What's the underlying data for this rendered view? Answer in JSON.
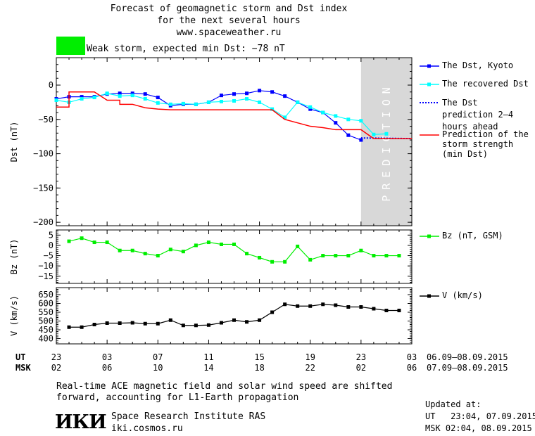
{
  "header": {
    "title_line1": "Forecast of geomagnetic storm and Dst index",
    "title_line2": "for the next several hours",
    "url": "www.spaceweather.ru",
    "status_text": "Weak storm, expected min Dst: −78 nT",
    "status_color": "#00ee00"
  },
  "prediction_label": "PREDICTION",
  "colors": {
    "dst_kyoto": "#0000ff",
    "dst_recovered": "#00ffff",
    "dst_prediction": "#0000ff",
    "storm_strength": "#ff0000",
    "bz": "#00ee00",
    "v": "#000000",
    "prediction_band": "#d8d8d8"
  },
  "chart_data": [
    {
      "type": "line",
      "ylabel": "Dst (nT)",
      "ylim": [
        -205,
        40
      ],
      "yticks": [
        0,
        -50,
        -100,
        -150,
        -200
      ],
      "ytick_labels": [
        "0",
        "−50",
        "−100",
        "−150",
        "−200"
      ],
      "xlim": [
        0,
        28
      ],
      "prediction_start": 24,
      "series": [
        {
          "name": "The Dst, Kyoto",
          "color_key": "dst_kyoto",
          "marker": "square",
          "x": [
            0,
            1,
            2,
            3,
            4,
            5,
            6,
            7,
            8,
            9,
            10,
            11,
            12,
            13,
            14,
            15,
            16,
            17,
            18,
            19,
            20,
            21,
            22,
            23,
            24
          ],
          "values": [
            -20,
            -17,
            -17,
            -17,
            -13,
            -12,
            -12,
            -13,
            -18,
            -30,
            -28,
            -28,
            -25,
            -15,
            -13,
            -12,
            -8,
            -10,
            -16,
            -25,
            -35,
            -40,
            -55,
            -73,
            -80
          ]
        },
        {
          "name": "The recovered Dst",
          "color_key": "dst_recovered",
          "marker": "square",
          "x": [
            0,
            1,
            2,
            3,
            4,
            5,
            6,
            7,
            8,
            9,
            10,
            11,
            12,
            13,
            14,
            15,
            16,
            17,
            18,
            19,
            20,
            21,
            22,
            23,
            24,
            25,
            26
          ],
          "values": [
            -22,
            -25,
            -20,
            -18,
            -12,
            -16,
            -15,
            -20,
            -26,
            -28,
            -27,
            -28,
            -25,
            -24,
            -23,
            -20,
            -25,
            -35,
            -47,
            -25,
            -32,
            -40,
            -45,
            -50,
            -52,
            -72,
            -71
          ]
        },
        {
          "name": "The Dst prediction 2–4 hours ahead",
          "color_key": "dst_prediction",
          "marker": "none",
          "dashed": true,
          "x": [
            24,
            28
          ],
          "values": [
            -77,
            -78
          ]
        },
        {
          "name": "Prediction of the storm strength (min Dst)",
          "color_key": "storm_strength",
          "marker": "none",
          "x": [
            0,
            1,
            1,
            3,
            4,
            5,
            5,
            6,
            7,
            8,
            9,
            10,
            13,
            16,
            17,
            17,
            18,
            19,
            20,
            21,
            22,
            23,
            24,
            25,
            26,
            28
          ],
          "values": [
            -32,
            -32,
            -10,
            -10,
            -22,
            -22,
            -28,
            -28,
            -33,
            -35,
            -36,
            -36,
            -36,
            -36,
            -36,
            -36,
            -50,
            -55,
            -60,
            -62,
            -65,
            -65,
            -65,
            -78,
            -78,
            -78
          ]
        }
      ]
    },
    {
      "type": "line",
      "ylabel": "Bz (nT)",
      "ylim": [
        -18.5,
        7.5
      ],
      "yticks": [
        5,
        0,
        -5,
        -10,
        -15
      ],
      "ytick_labels": [
        "5",
        "0",
        "−5",
        "−10",
        "−15"
      ],
      "xlim": [
        0,
        28
      ],
      "series": [
        {
          "name": "Bz (nT, GSM)",
          "color_key": "bz",
          "marker": "square",
          "x": [
            1,
            2,
            3,
            4,
            5,
            6,
            7,
            8,
            9,
            10,
            11,
            12,
            13,
            14,
            15,
            16,
            17,
            18,
            19,
            20,
            21,
            22,
            23,
            24,
            25,
            26,
            27
          ],
          "values": [
            2,
            3.5,
            1.5,
            1.5,
            -2.5,
            -2.5,
            -4,
            -5,
            -2,
            -3,
            0,
            1.5,
            0.5,
            0.5,
            -4,
            -6,
            -8,
            -8,
            -0.5,
            -7,
            -5,
            -5,
            -5,
            -2.5,
            -5,
            -5,
            -5
          ]
        }
      ]
    },
    {
      "type": "line",
      "ylabel": "V (km/s)",
      "ylim": [
        370,
        690
      ],
      "yticks": [
        650,
        600,
        550,
        500,
        450,
        400
      ],
      "ytick_labels": [
        "650",
        "600",
        "550",
        "500",
        "450",
        "400"
      ],
      "xlim": [
        0,
        28
      ],
      "series": [
        {
          "name": "V (km/s)",
          "color_key": "v",
          "marker": "square",
          "x": [
            1,
            2,
            3,
            4,
            5,
            6,
            7,
            8,
            9,
            10,
            11,
            12,
            13,
            14,
            15,
            16,
            17,
            18,
            19,
            20,
            21,
            22,
            23,
            24,
            25,
            26,
            27
          ],
          "values": [
            465,
            465,
            480,
            488,
            488,
            490,
            485,
            485,
            505,
            475,
            475,
            477,
            490,
            505,
            495,
            505,
            550,
            595,
            585,
            585,
            595,
            590,
            580,
            580,
            570,
            560,
            560
          ]
        }
      ]
    }
  ],
  "xaxis": {
    "ut_label": "UT",
    "msk_label": "MSK",
    "ut_ticks": [
      "23",
      "03",
      "07",
      "11",
      "15",
      "19",
      "23",
      "03"
    ],
    "msk_ticks": [
      "02",
      "06",
      "10",
      "14",
      "18",
      "22",
      "02",
      "06"
    ],
    "ut_range": "06.09–08.09.2015",
    "msk_range": "07.09–08.09.2015"
  },
  "footer": {
    "note_line1": "Real-time ACE magnetic field and solar wind speed are shifted",
    "note_line2": "forward, accounting for L1-Earth propagation",
    "logo_text": "ИКИ",
    "institute": "Space Research Institute RAS",
    "site": "iki.cosmos.ru",
    "updated_label": "Updated at:",
    "updated_ut": "UT   23:04, 07.09.2015",
    "updated_msk": "MSK 02:04, 08.09.2015"
  }
}
